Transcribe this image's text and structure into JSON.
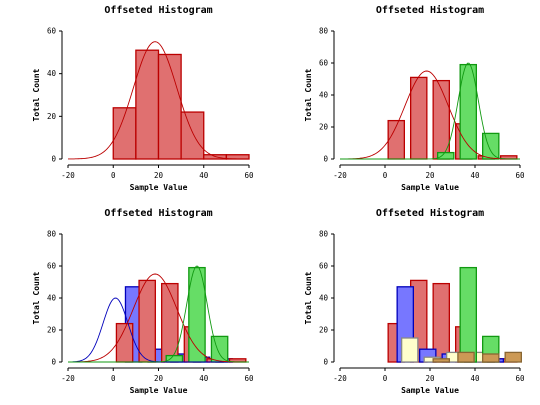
{
  "chart_data": [
    {
      "type": "bar",
      "title": "Offseted Histogram",
      "xlabel": "Sample Value",
      "ylabel": "Total Count",
      "xlim": [
        -20,
        60
      ],
      "ylim": [
        0,
        60
      ],
      "xticks": [
        -20,
        0,
        20,
        40,
        60
      ],
      "yticks": [
        0,
        20,
        40,
        60
      ],
      "bar_style": "contiguous",
      "grid": false,
      "series": [
        {
          "color": "#e07070",
          "edge": "#bb0000",
          "bins": [
            [
              0,
              10,
              24
            ],
            [
              10,
              20,
              51
            ],
            [
              20,
              30,
              49
            ],
            [
              30,
              40,
              22
            ],
            [
              40,
              50,
              2
            ],
            [
              50,
              60,
              2
            ]
          ],
          "curve": {
            "mean": 18.5,
            "sd": 9.6,
            "peak": 55
          }
        }
      ]
    },
    {
      "type": "bar",
      "title": "Offseted Histogram",
      "xlabel": "Sample Value",
      "ylabel": "Total Count",
      "xlim": [
        -20,
        60
      ],
      "ylim": [
        0,
        80
      ],
      "xticks": [
        -20,
        0,
        20,
        40,
        60
      ],
      "yticks": [
        0,
        20,
        40,
        60,
        80
      ],
      "bar_style": "separated",
      "grid": false,
      "series": [
        {
          "color": "#e07070",
          "edge": "#bb0000",
          "bins": [
            [
              5,
              24
            ],
            [
              15,
              51
            ],
            [
              25,
              49
            ],
            [
              35,
              22
            ],
            [
              45,
              2
            ],
            [
              55,
              2
            ]
          ],
          "curve": {
            "mean": 18.5,
            "sd": 9.6,
            "peak": 55
          }
        },
        {
          "color": "#66dd66",
          "edge": "#119911",
          "bins": [
            [
              27,
              4
            ],
            [
              37,
              59
            ],
            [
              47,
              16
            ]
          ],
          "curve": {
            "mean": 37,
            "sd": 4.5,
            "peak": 60
          }
        }
      ]
    },
    {
      "type": "bar",
      "title": "Offseted Histogram",
      "xlabel": "Sample Value",
      "ylabel": "Total Count",
      "xlim": [
        -20,
        60
      ],
      "ylim": [
        0,
        80
      ],
      "xticks": [
        -20,
        0,
        20,
        40,
        60
      ],
      "yticks": [
        0,
        20,
        40,
        60,
        80
      ],
      "bar_style": "separated",
      "grid": false,
      "series": [
        {
          "color": "#7777ff",
          "edge": "#0000bb",
          "bins": [
            [
              9,
              47
            ],
            [
              19,
              8
            ],
            [
              29,
              5
            ],
            [
              39,
              3
            ],
            [
              49,
              2
            ]
          ],
          "curve": {
            "mean": 1,
            "sd": 5.5,
            "peak": 40
          }
        },
        {
          "color": "#e07070",
          "edge": "#bb0000",
          "bins": [
            [
              5,
              24
            ],
            [
              15,
              51
            ],
            [
              25,
              49
            ],
            [
              35,
              22
            ],
            [
              45,
              2
            ],
            [
              55,
              2
            ]
          ],
          "curve": {
            "mean": 18.5,
            "sd": 9.6,
            "peak": 55
          }
        },
        {
          "color": "#66dd66",
          "edge": "#119911",
          "bins": [
            [
              27,
              4
            ],
            [
              37,
              59
            ],
            [
              47,
              16
            ]
          ],
          "curve": {
            "mean": 37,
            "sd": 4.5,
            "peak": 60
          }
        }
      ]
    },
    {
      "type": "bar",
      "title": "Offseted Histogram",
      "xlabel": "Sample Value",
      "ylabel": "Total Count",
      "xlim": [
        -20,
        60
      ],
      "ylim": [
        0,
        80
      ],
      "xticks": [
        -20,
        0,
        20,
        40,
        60
      ],
      "yticks": [
        0,
        20,
        40,
        60,
        80
      ],
      "bar_style": "separated",
      "grid": false,
      "series": [
        {
          "color": "#e07070",
          "edge": "#bb0000",
          "bins": [
            [
              5,
              24
            ],
            [
              15,
              51
            ],
            [
              25,
              49
            ],
            [
              35,
              22
            ],
            [
              45,
              2
            ],
            [
              55,
              2
            ]
          ]
        },
        {
          "color": "#7777ff",
          "edge": "#0000bb",
          "bins": [
            [
              9,
              47
            ],
            [
              19,
              8
            ],
            [
              29,
              5
            ],
            [
              39,
              3
            ],
            [
              49,
              2
            ]
          ]
        },
        {
          "color": "#ffffcc",
          "edge": "#888888",
          "bins": [
            [
              11,
              15
            ],
            [
              21,
              3
            ],
            [
              31,
              6
            ],
            [
              41,
              6
            ]
          ]
        },
        {
          "color": "#66dd66",
          "edge": "#119911",
          "bins": [
            [
              37,
              59
            ],
            [
              47,
              16
            ]
          ]
        },
        {
          "color": "#cc9955",
          "edge": "#886633",
          "bins": [
            [
              25,
              2
            ],
            [
              36,
              6
            ],
            [
              47,
              5
            ],
            [
              57,
              6
            ]
          ]
        }
      ]
    }
  ]
}
